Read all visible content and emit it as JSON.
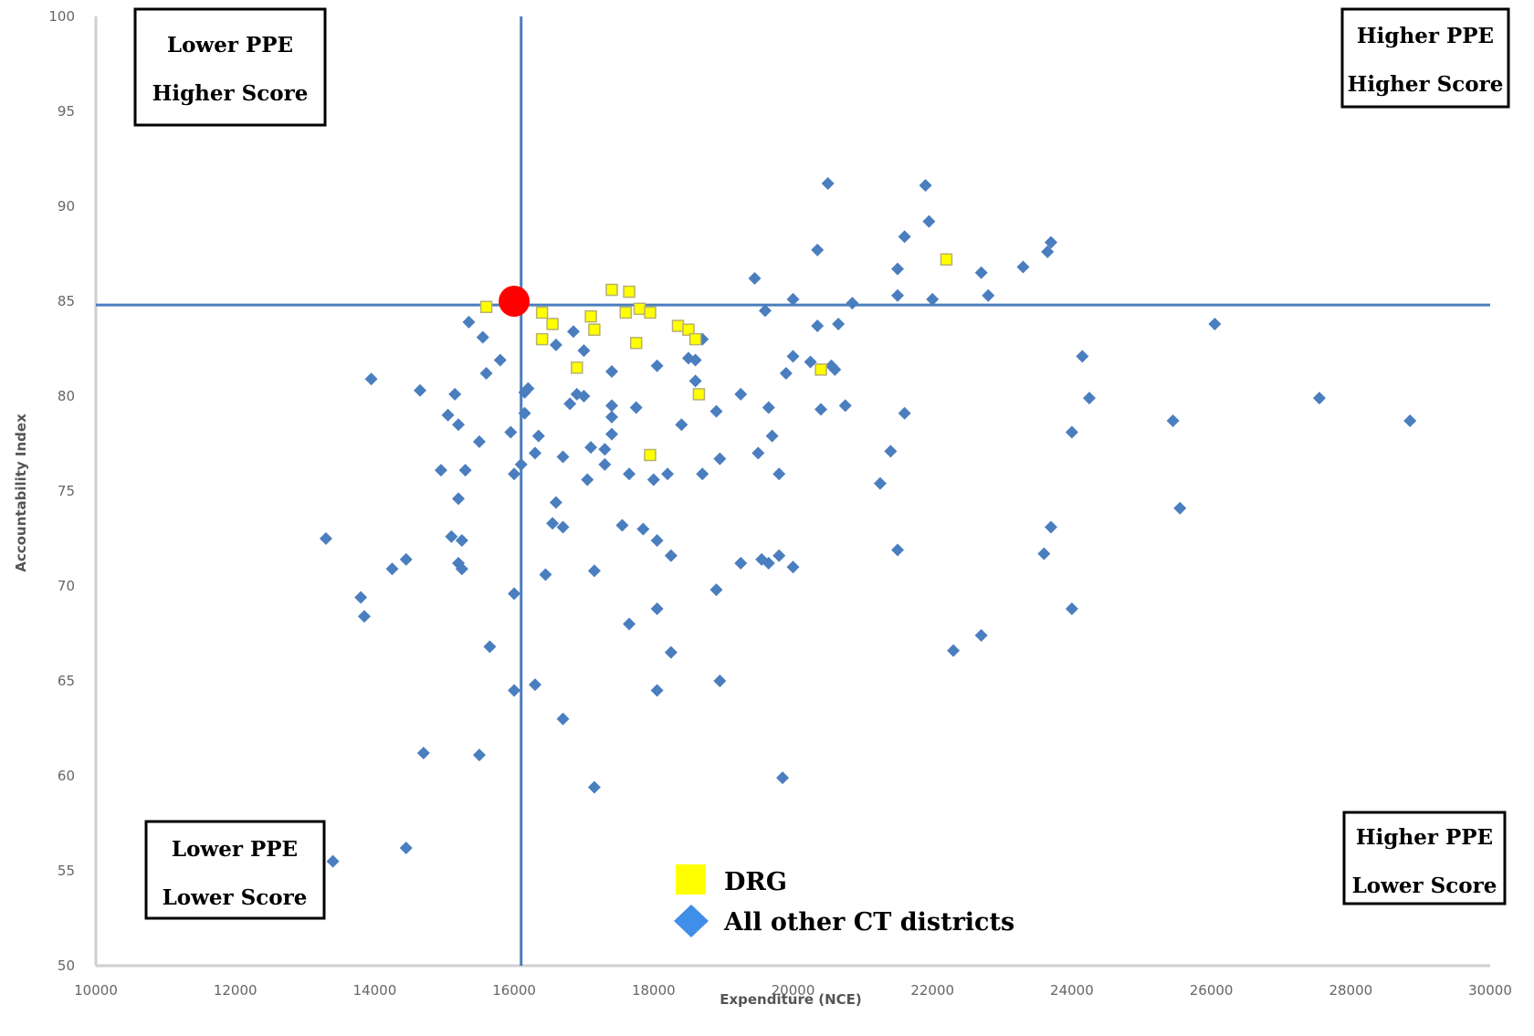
{
  "chart_data": {
    "type": "scatter",
    "title": "",
    "xlabel": "Expenditure (NCE)",
    "ylabel": "Accountability Index",
    "xlim": [
      10000,
      30000
    ],
    "ylim": [
      50,
      100
    ],
    "xticks": [
      "10000",
      "12000",
      "14000",
      "16000",
      "18000",
      "20000",
      "22000",
      "24000",
      "26000",
      "28000",
      "30000"
    ],
    "yticks": [
      "50",
      "55",
      "60",
      "65",
      "70",
      "75",
      "80",
      "85",
      "90",
      "95",
      "100"
    ],
    "grid": false,
    "reference_lines": {
      "x": 16100,
      "y": 84.8,
      "color": "#4a7ebf"
    },
    "highlight_point": {
      "x": 16000,
      "y": 85.0,
      "color": "#ff0000"
    },
    "quadrant_labels": {
      "top_left": [
        "Lower PPE",
        "Higher Score"
      ],
      "top_right": [
        "Higher PPE",
        "Higher Score"
      ],
      "bottom_left": [
        "Lower PPE",
        "Lower Score"
      ],
      "bottom_right": [
        "Higher PPE",
        "Lower Score"
      ]
    },
    "legend": {
      "placement": "bottom-center"
    },
    "series": [
      {
        "name": "DRG",
        "marker": "square",
        "color": "#ffff00",
        "points": [
          [
            15600,
            84.7
          ],
          [
            16400,
            84.4
          ],
          [
            16550,
            83.8
          ],
          [
            16400,
            83.0
          ],
          [
            17100,
            84.2
          ],
          [
            17150,
            83.5
          ],
          [
            17400,
            85.6
          ],
          [
            17650,
            85.5
          ],
          [
            17600,
            84.4
          ],
          [
            17800,
            84.6
          ],
          [
            17950,
            84.4
          ],
          [
            17750,
            82.8
          ],
          [
            16900,
            81.5
          ],
          [
            18350,
            83.7
          ],
          [
            18500,
            83.5
          ],
          [
            18600,
            83.0
          ],
          [
            18650,
            80.1
          ],
          [
            17950,
            76.9
          ],
          [
            20400,
            81.4
          ],
          [
            22200,
            87.2
          ]
        ]
      },
      {
        "name": "All other CT districts",
        "marker": "diamond",
        "color": "#4a7ebf",
        "points": [
          [
            13300,
            72.5
          ],
          [
            13400,
            55.5
          ],
          [
            13800,
            69.4
          ],
          [
            13850,
            68.4
          ],
          [
            13950,
            80.9
          ],
          [
            14250,
            70.9
          ],
          [
            14450,
            71.4
          ],
          [
            14450,
            56.2
          ],
          [
            14650,
            80.3
          ],
          [
            14700,
            61.2
          ],
          [
            14950,
            76.1
          ],
          [
            15050,
            79.0
          ],
          [
            15100,
            72.6
          ],
          [
            15150,
            80.1
          ],
          [
            15200,
            78.5
          ],
          [
            15200,
            74.6
          ],
          [
            15200,
            71.2
          ],
          [
            15250,
            70.9
          ],
          [
            15250,
            72.4
          ],
          [
            15300,
            76.1
          ],
          [
            15350,
            83.9
          ],
          [
            15500,
            77.6
          ],
          [
            15500,
            61.1
          ],
          [
            15550,
            83.1
          ],
          [
            15600,
            81.2
          ],
          [
            15650,
            66.8
          ],
          [
            15800,
            81.9
          ],
          [
            15950,
            78.1
          ],
          [
            16000,
            75.9
          ],
          [
            16000,
            69.6
          ],
          [
            16000,
            64.5
          ],
          [
            16100,
            76.4
          ],
          [
            16150,
            79.1
          ],
          [
            16150,
            80.2
          ],
          [
            16200,
            80.4
          ],
          [
            16300,
            77.0
          ],
          [
            16300,
            64.8
          ],
          [
            16350,
            77.9
          ],
          [
            16450,
            70.6
          ],
          [
            16550,
            73.3
          ],
          [
            16600,
            82.7
          ],
          [
            16600,
            74.4
          ],
          [
            16700,
            76.8
          ],
          [
            16700,
            73.1
          ],
          [
            16700,
            63.0
          ],
          [
            16800,
            79.6
          ],
          [
            16850,
            83.4
          ],
          [
            16900,
            80.1
          ],
          [
            17000,
            82.4
          ],
          [
            17000,
            80.0
          ],
          [
            17050,
            75.6
          ],
          [
            17100,
            77.3
          ],
          [
            17150,
            70.8
          ],
          [
            17150,
            59.4
          ],
          [
            17300,
            77.2
          ],
          [
            17300,
            76.4
          ],
          [
            17400,
            81.3
          ],
          [
            17400,
            79.5
          ],
          [
            17400,
            78.0
          ],
          [
            17400,
            78.9
          ],
          [
            17550,
            73.2
          ],
          [
            17650,
            75.9
          ],
          [
            17650,
            68.0
          ],
          [
            17750,
            79.4
          ],
          [
            17850,
            73.0
          ],
          [
            18000,
            75.6
          ],
          [
            18050,
            81.6
          ],
          [
            18050,
            72.4
          ],
          [
            18050,
            68.8
          ],
          [
            18050,
            64.5
          ],
          [
            18200,
            75.9
          ],
          [
            18250,
            71.6
          ],
          [
            18250,
            66.5
          ],
          [
            18400,
            78.5
          ],
          [
            18500,
            82.0
          ],
          [
            18600,
            81.9
          ],
          [
            18600,
            80.8
          ],
          [
            18700,
            83.0
          ],
          [
            18700,
            75.9
          ],
          [
            18900,
            69.8
          ],
          [
            18900,
            79.2
          ],
          [
            18950,
            76.7
          ],
          [
            18950,
            65.0
          ],
          [
            19250,
            80.1
          ],
          [
            19250,
            71.2
          ],
          [
            19450,
            86.2
          ],
          [
            19500,
            77.0
          ],
          [
            19550,
            71.4
          ],
          [
            19600,
            84.5
          ],
          [
            19650,
            71.2
          ],
          [
            19650,
            79.4
          ],
          [
            19700,
            77.9
          ],
          [
            19800,
            71.6
          ],
          [
            19800,
            75.9
          ],
          [
            19850,
            59.9
          ],
          [
            19900,
            81.2
          ],
          [
            20000,
            82.1
          ],
          [
            20000,
            85.1
          ],
          [
            20000,
            71.0
          ],
          [
            20250,
            81.8
          ],
          [
            20350,
            83.7
          ],
          [
            20350,
            87.7
          ],
          [
            20400,
            79.3
          ],
          [
            20500,
            91.2
          ],
          [
            20550,
            81.6
          ],
          [
            20600,
            81.4
          ],
          [
            20650,
            83.8
          ],
          [
            20750,
            79.5
          ],
          [
            20850,
            84.9
          ],
          [
            21250,
            75.4
          ],
          [
            21400,
            77.1
          ],
          [
            21500,
            71.9
          ],
          [
            21500,
            85.3
          ],
          [
            21500,
            86.7
          ],
          [
            21600,
            79.1
          ],
          [
            21600,
            88.4
          ],
          [
            21900,
            91.1
          ],
          [
            21950,
            89.2
          ],
          [
            22000,
            85.1
          ],
          [
            22300,
            66.6
          ],
          [
            22700,
            86.5
          ],
          [
            22700,
            67.4
          ],
          [
            22800,
            85.3
          ],
          [
            23300,
            86.8
          ],
          [
            23600,
            71.7
          ],
          [
            23650,
            87.6
          ],
          [
            23700,
            88.1
          ],
          [
            23700,
            73.1
          ],
          [
            24000,
            78.1
          ],
          [
            24000,
            68.8
          ],
          [
            24150,
            82.1
          ],
          [
            24250,
            79.9
          ],
          [
            25450,
            78.7
          ],
          [
            25550,
            74.1
          ],
          [
            26050,
            83.8
          ],
          [
            27550,
            79.9
          ],
          [
            28850,
            78.7
          ]
        ]
      }
    ]
  }
}
